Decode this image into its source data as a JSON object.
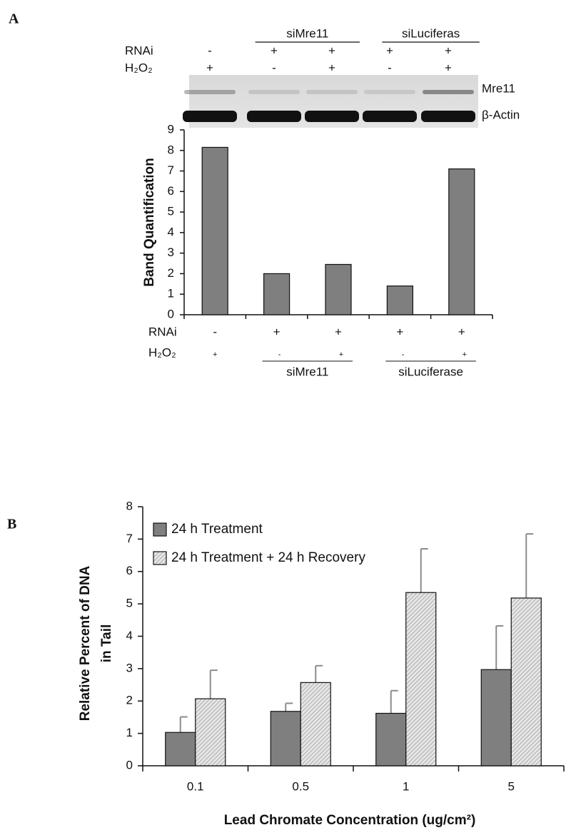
{
  "chart_data": [
    {
      "type": "bar",
      "panel_label": "A",
      "ylabel": "Band Quantification",
      "blot": {
        "groups": [
          "siMre11",
          "siLuciferas"
        ],
        "rnai_label": "RNAi",
        "rnai": [
          "-",
          "+",
          "+",
          "+",
          "+"
        ],
        "h2o2_label": "H₂O₂",
        "h2o2": [
          "+",
          "-",
          "+",
          "-",
          "+"
        ],
        "bands": [
          "Mre11",
          "β-Actin"
        ]
      },
      "rnai_label": "RNAi",
      "rnai": [
        "-",
        "+",
        "+",
        "+",
        "+"
      ],
      "h2o2_label": "H₂O₂",
      "h2o2": [
        "+",
        "-",
        "+",
        "-",
        "+"
      ],
      "groups": [
        "siMre11",
        "siLuciferase"
      ],
      "categories": [
        null,
        null,
        null,
        null,
        null
      ],
      "values": [
        8.15,
        2.0,
        2.45,
        1.4,
        7.1
      ],
      "color": "#7f7f7f",
      "ylim": [
        0,
        9
      ],
      "yticks": [
        0,
        1,
        2,
        3,
        4,
        5,
        6,
        7,
        8,
        9
      ]
    },
    {
      "type": "grouped-bar",
      "panel_label": "B",
      "ylabel": [
        "Relative Percent of DNA",
        "in Tail"
      ],
      "xlabel": "Lead Chromate Concentration (ug/cm²)",
      "categories": [
        "0.1",
        "0.5",
        "1",
        "5"
      ],
      "series": [
        {
          "name": "24 h Treatment",
          "color": "#7f7f7f",
          "values": [
            1.03,
            1.68,
            1.62,
            2.97
          ],
          "errors": [
            0.48,
            0.25,
            0.7,
            1.35
          ]
        },
        {
          "name": "24 h Treatment + 24 h Recovery",
          "color": "#d9d9d9",
          "hatch": true,
          "values": [
            2.07,
            2.57,
            5.35,
            5.18
          ],
          "errors": [
            0.88,
            0.52,
            1.35,
            1.98
          ]
        }
      ],
      "error_color": "#8c8c8c",
      "legend": "upper-left",
      "ylim": [
        0,
        8
      ],
      "yticks": [
        0,
        1,
        2,
        3,
        4,
        5,
        6,
        7,
        8
      ]
    }
  ]
}
